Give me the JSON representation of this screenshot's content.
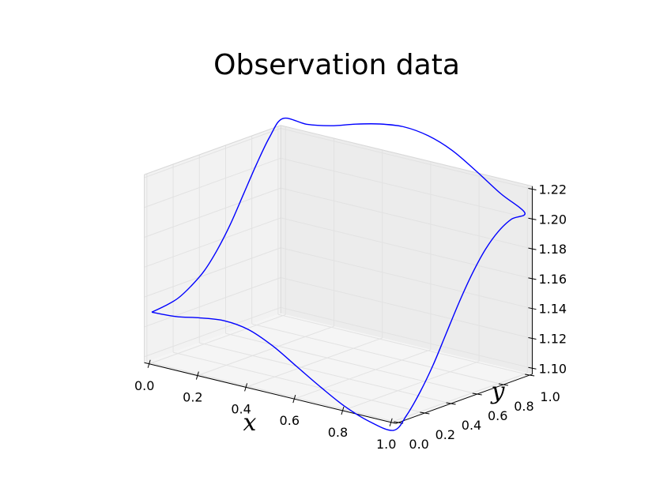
{
  "chart_data": {
    "type": "line",
    "projection": "3d",
    "title": "Observation data",
    "xlabel": "x",
    "ylabel": "y",
    "zlabel": "",
    "xlim": [
      0.0,
      1.0
    ],
    "ylim": [
      0.0,
      1.0
    ],
    "zlim": [
      1.1,
      1.22
    ],
    "x_ticks": [
      "0.0",
      "0.2",
      "0.4",
      "0.6",
      "0.8",
      "1.0"
    ],
    "y_ticks": [
      "0.0",
      "0.2",
      "0.4",
      "0.6",
      "0.8",
      "1.0"
    ],
    "z_ticks": [
      "1.10",
      "1.12",
      "1.14",
      "1.16",
      "1.18",
      "1.20",
      "1.22"
    ],
    "grid": true,
    "series": [
      {
        "color": "#0000ff",
        "points": [
          {
            "x": 0.0,
            "y": 0.0,
            "z": 1.13
          },
          {
            "x": 0.1,
            "y": 0.0,
            "z": 1.131
          },
          {
            "x": 0.2,
            "y": 0.0,
            "z": 1.134
          },
          {
            "x": 0.3,
            "y": 0.0,
            "z": 1.136
          },
          {
            "x": 0.4,
            "y": 0.0,
            "z": 1.134
          },
          {
            "x": 0.5,
            "y": 0.0,
            "z": 1.127
          },
          {
            "x": 0.6,
            "y": 0.0,
            "z": 1.117
          },
          {
            "x": 0.7,
            "y": 0.0,
            "z": 1.107
          },
          {
            "x": 0.8,
            "y": 0.0,
            "z": 1.098
          },
          {
            "x": 0.9,
            "y": 0.0,
            "z": 1.092
          },
          {
            "x": 1.0,
            "y": 0.0,
            "z": 1.09
          },
          {
            "x": 1.0,
            "y": 0.1,
            "z": 1.097
          },
          {
            "x": 1.0,
            "y": 0.2,
            "z": 1.109
          },
          {
            "x": 1.0,
            "y": 0.3,
            "z": 1.124
          },
          {
            "x": 1.0,
            "y": 0.4,
            "z": 1.142
          },
          {
            "x": 1.0,
            "y": 0.5,
            "z": 1.16
          },
          {
            "x": 1.0,
            "y": 0.6,
            "z": 1.176
          },
          {
            "x": 1.0,
            "y": 0.7,
            "z": 1.189
          },
          {
            "x": 1.0,
            "y": 0.8,
            "z": 1.198
          },
          {
            "x": 1.0,
            "y": 0.9,
            "z": 1.203
          },
          {
            "x": 1.0,
            "y": 1.0,
            "z": 1.204
          },
          {
            "x": 0.9,
            "y": 1.0,
            "z": 1.213
          },
          {
            "x": 0.8,
            "y": 1.0,
            "z": 1.224
          },
          {
            "x": 0.7,
            "y": 1.0,
            "z": 1.234
          },
          {
            "x": 0.6,
            "y": 1.0,
            "z": 1.24
          },
          {
            "x": 0.5,
            "y": 1.0,
            "z": 1.242
          },
          {
            "x": 0.4,
            "y": 1.0,
            "z": 1.24
          },
          {
            "x": 0.3,
            "y": 1.0,
            "z": 1.236
          },
          {
            "x": 0.2,
            "y": 1.0,
            "z": 1.231
          },
          {
            "x": 0.1,
            "y": 1.0,
            "z": 1.228
          },
          {
            "x": 0.0,
            "y": 1.0,
            "z": 1.228
          },
          {
            "x": 0.0,
            "y": 0.9,
            "z": 1.219
          },
          {
            "x": 0.0,
            "y": 0.8,
            "z": 1.204
          },
          {
            "x": 0.0,
            "y": 0.7,
            "z": 1.187
          },
          {
            "x": 0.0,
            "y": 0.6,
            "z": 1.17
          },
          {
            "x": 0.0,
            "y": 0.5,
            "z": 1.156
          },
          {
            "x": 0.0,
            "y": 0.4,
            "z": 1.145
          },
          {
            "x": 0.0,
            "y": 0.3,
            "z": 1.138
          },
          {
            "x": 0.0,
            "y": 0.2,
            "z": 1.133
          },
          {
            "x": 0.0,
            "y": 0.1,
            "z": 1.131
          },
          {
            "x": 0.0,
            "y": 0.0,
            "z": 1.13
          }
        ]
      }
    ]
  }
}
